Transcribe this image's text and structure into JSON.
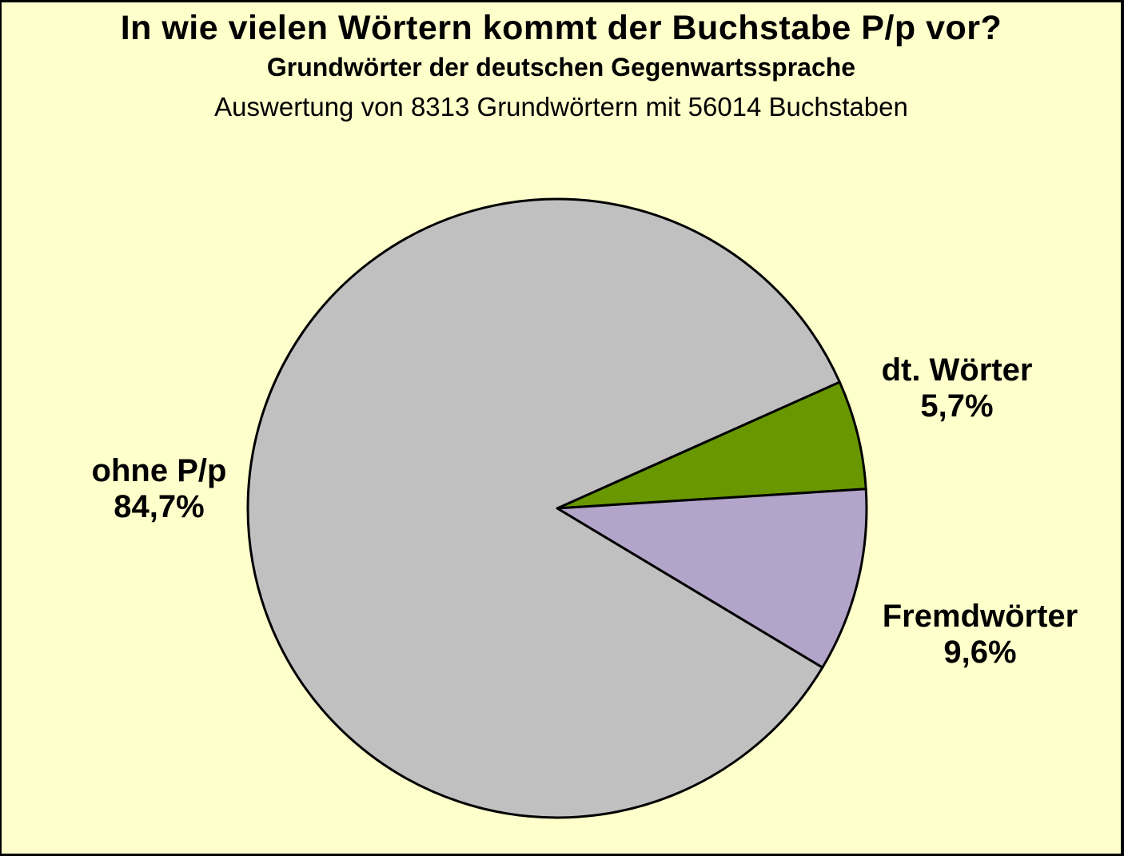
{
  "page": {
    "background_color": "#FFFFCC",
    "border_color": "#000000"
  },
  "chart_data": {
    "type": "pie",
    "title": "In wie vielen Wörtern kommt der Buchstabe P/p vor?",
    "subtitle": "Grundwörter der deutschen Gegenwartssprache",
    "note": "Auswertung von 8313 Grundwörtern mit 56014 Buchstaben",
    "unit": "%",
    "legend_position": "none",
    "labels_outside": true,
    "start_angle_deg": -24.1,
    "direction": "clockwise",
    "stroke_color": "#000000",
    "slices": [
      {
        "id": "dt-woerter",
        "label": "dt. Wörter",
        "value": 5.7,
        "value_label": "5,7%",
        "color": "#689700"
      },
      {
        "id": "fremdwoerter",
        "label": "Fremdwörter",
        "value": 9.6,
        "value_label": "9,6%",
        "color": "#B2A5C9"
      },
      {
        "id": "ohne-pp",
        "label": "ohne P/p",
        "value": 84.7,
        "value_label": "84,7%",
        "color": "#C0C0C0"
      }
    ]
  }
}
